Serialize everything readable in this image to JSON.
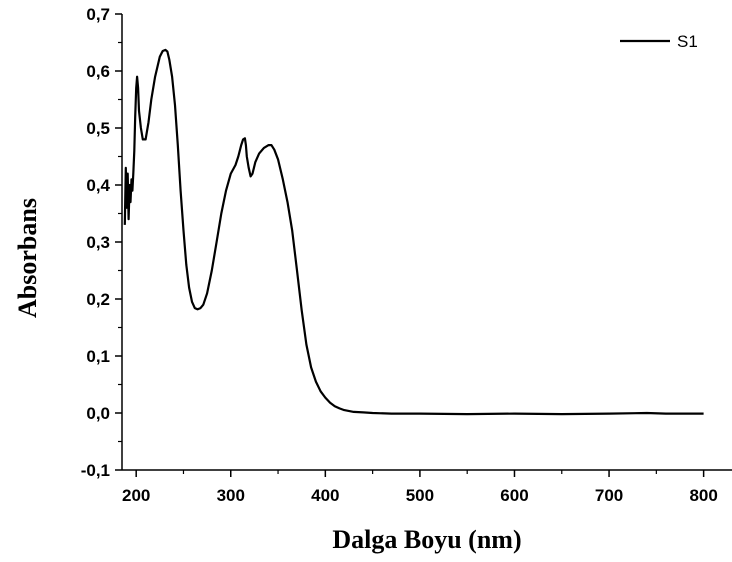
{
  "chart_data": {
    "type": "line",
    "title": "",
    "xlabel": "Dalga Boyu (nm)",
    "ylabel": "Absorbans",
    "xlim": [
      185,
      830
    ],
    "ylim": [
      -0.1,
      0.7
    ],
    "x_ticks": [
      200,
      300,
      400,
      500,
      600,
      700,
      800
    ],
    "x_tick_labels": [
      "200",
      "300",
      "400",
      "500",
      "600",
      "700",
      "800"
    ],
    "y_ticks": [
      -0.1,
      0.0,
      0.1,
      0.2,
      0.3,
      0.4,
      0.5,
      0.6,
      0.7
    ],
    "y_tick_labels": [
      "-0,1",
      "0,0",
      "0,1",
      "0,2",
      "0,3",
      "0,4",
      "0,5",
      "0,6",
      "0,7"
    ],
    "grid": false,
    "legend_position": "top-right",
    "series": [
      {
        "name": "S1",
        "color": "#000000",
        "x": [
          188,
          189,
          190,
          191,
          192,
          193,
          194,
          195,
          196,
          197,
          198,
          199,
          200,
          201,
          202,
          203,
          205,
          207,
          210,
          213,
          216,
          220,
          225,
          228,
          231,
          233,
          235,
          238,
          241,
          244,
          247,
          250,
          253,
          256,
          259,
          262,
          265,
          268,
          271,
          275,
          280,
          285,
          290,
          295,
          300,
          305,
          308,
          311,
          313,
          315,
          316,
          317,
          319,
          321,
          323,
          326,
          330,
          335,
          340,
          343,
          346,
          350,
          355,
          360,
          365,
          370,
          375,
          380,
          385,
          390,
          395,
          400,
          405,
          410,
          415,
          420,
          430,
          440,
          450,
          470,
          500,
          550,
          600,
          650,
          700,
          740,
          760,
          800
        ],
        "y": [
          0.33,
          0.43,
          0.36,
          0.42,
          0.34,
          0.4,
          0.37,
          0.41,
          0.39,
          0.42,
          0.46,
          0.52,
          0.57,
          0.59,
          0.57,
          0.53,
          0.5,
          0.48,
          0.48,
          0.51,
          0.55,
          0.59,
          0.625,
          0.635,
          0.637,
          0.634,
          0.62,
          0.59,
          0.54,
          0.47,
          0.39,
          0.32,
          0.26,
          0.22,
          0.195,
          0.184,
          0.182,
          0.184,
          0.19,
          0.21,
          0.25,
          0.3,
          0.35,
          0.39,
          0.42,
          0.435,
          0.45,
          0.47,
          0.48,
          0.482,
          0.47,
          0.45,
          0.43,
          0.415,
          0.42,
          0.44,
          0.455,
          0.465,
          0.47,
          0.47,
          0.462,
          0.445,
          0.41,
          0.37,
          0.32,
          0.25,
          0.18,
          0.12,
          0.08,
          0.055,
          0.038,
          0.027,
          0.018,
          0.012,
          0.008,
          0.005,
          0.002,
          0.001,
          0.0,
          -0.001,
          -0.001,
          -0.002,
          -0.001,
          -0.002,
          -0.001,
          0.0,
          -0.001,
          -0.001
        ]
      }
    ]
  }
}
